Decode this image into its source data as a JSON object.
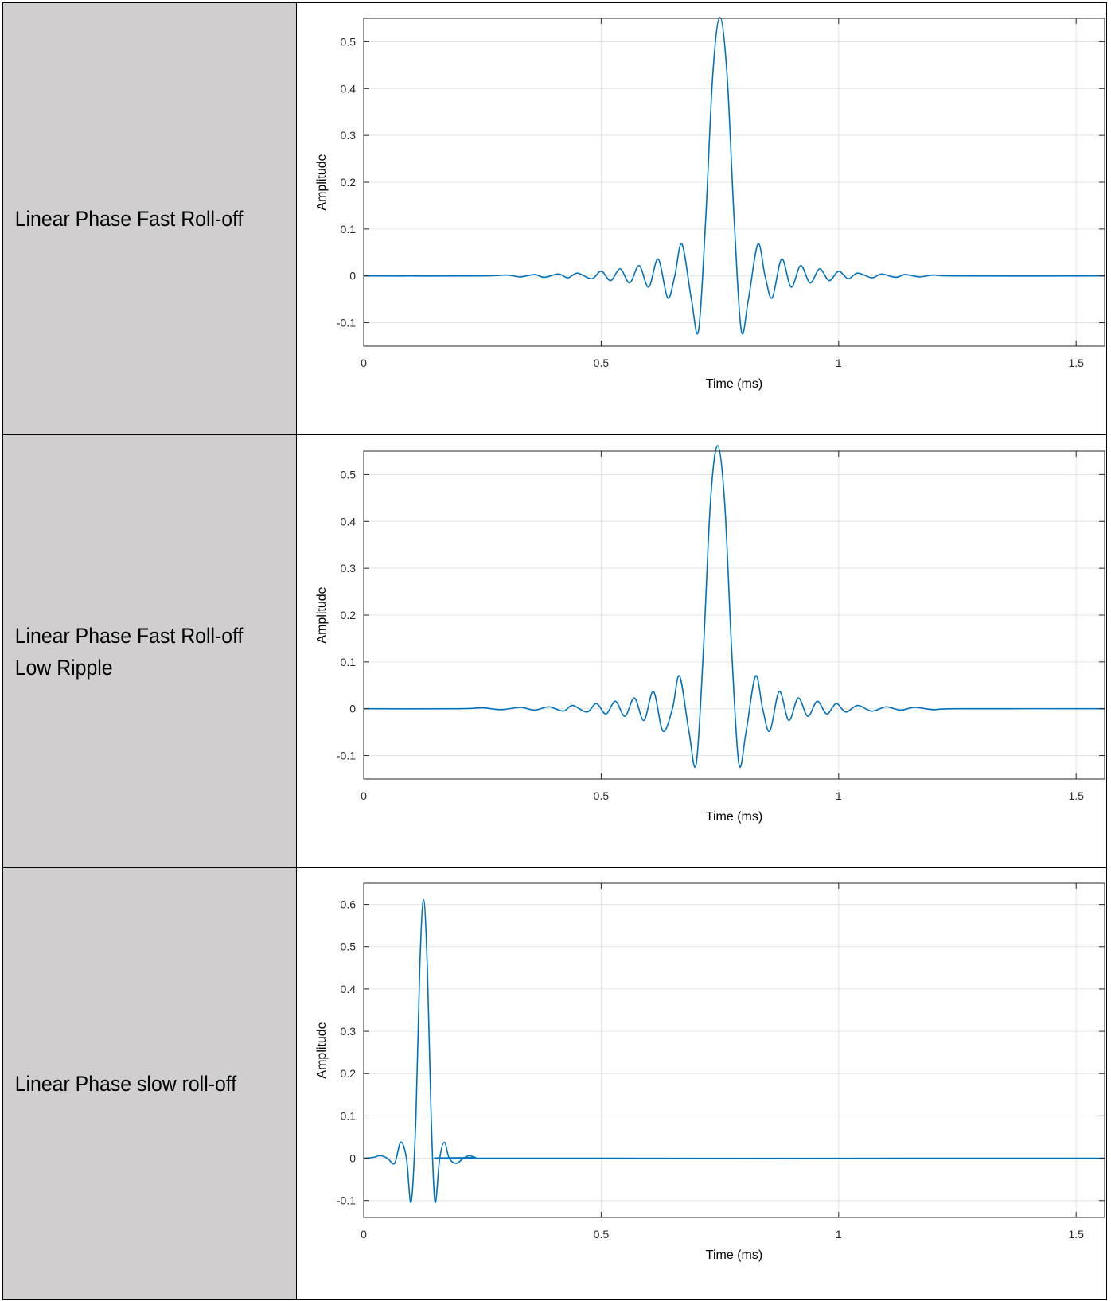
{
  "rows": [
    {
      "label": "Linear Phase Fast Roll-off"
    },
    {
      "label": "Linear Phase Fast Roll-off\nLow Ripple"
    },
    {
      "label": "Linear Phase slow roll-off"
    }
  ],
  "colors": {
    "line": "#0072bd",
    "label_bg": "#d0cecf"
  },
  "chart_data": [
    {
      "type": "line",
      "title": "",
      "xlabel": "Time (ms)",
      "ylabel": "Amplitude",
      "xlim": [
        0,
        1.56
      ],
      "ylim": [
        -0.15,
        0.55
      ],
      "xticks": [
        0,
        0.5,
        1,
        1.5
      ],
      "xtick_labels": [
        "0",
        "0.5",
        "1",
        "1.5"
      ],
      "yticks": [
        -0.1,
        0,
        0.1,
        0.2,
        0.3,
        0.4,
        0.5
      ],
      "ytick_labels": [
        "-0.1",
        "0",
        "0.1",
        "0.2",
        "0.3",
        "0.4",
        "0.5"
      ],
      "grid": true,
      "series": [
        {
          "x": [
            0,
            0.25,
            0.3,
            0.33,
            0.36,
            0.38,
            0.41,
            0.43,
            0.45,
            0.48,
            0.5,
            0.52,
            0.54,
            0.56,
            0.58,
            0.6,
            0.62,
            0.64,
            0.655,
            0.67,
            0.69,
            0.705,
            0.72,
            0.735,
            0.75,
            0.765,
            0.78,
            0.795,
            0.81,
            0.83,
            0.845,
            0.86,
            0.88,
            0.9,
            0.92,
            0.94,
            0.96,
            0.98,
            1.0,
            1.02,
            1.04,
            1.07,
            1.09,
            1.12,
            1.14,
            1.17,
            1.2,
            1.25,
            1.56
          ],
          "y": [
            0,
            0,
            0.002,
            -0.002,
            0.003,
            -0.003,
            0.004,
            -0.004,
            0.006,
            -0.006,
            0.01,
            -0.01,
            0.015,
            -0.015,
            0.022,
            -0.024,
            0.036,
            -0.047,
            0.0,
            0.068,
            -0.05,
            -0.117,
            0.12,
            0.43,
            0.552,
            0.43,
            0.12,
            -0.117,
            -0.05,
            0.068,
            0.0,
            -0.047,
            0.036,
            -0.024,
            0.022,
            -0.015,
            0.015,
            -0.01,
            0.01,
            -0.006,
            0.006,
            -0.004,
            0.004,
            -0.003,
            0.003,
            -0.002,
            0.002,
            0,
            0
          ]
        }
      ]
    },
    {
      "type": "line",
      "title": "",
      "xlabel": "Time (ms)",
      "ylabel": "Amplitude",
      "xlim": [
        0,
        1.56
      ],
      "ylim": [
        -0.15,
        0.55
      ],
      "xticks": [
        0,
        0.5,
        1,
        1.5
      ],
      "xtick_labels": [
        "0",
        "0.5",
        "1",
        "1.5"
      ],
      "yticks": [
        -0.1,
        0,
        0.1,
        0.2,
        0.3,
        0.4,
        0.5
      ],
      "ytick_labels": [
        "-0.1",
        "0",
        "0.1",
        "0.2",
        "0.3",
        "0.4",
        "0.5"
      ],
      "grid": true,
      "series": [
        {
          "x": [
            0,
            0.2,
            0.25,
            0.29,
            0.33,
            0.36,
            0.39,
            0.42,
            0.44,
            0.47,
            0.49,
            0.51,
            0.53,
            0.55,
            0.57,
            0.59,
            0.61,
            0.63,
            0.65,
            0.665,
            0.685,
            0.7,
            0.715,
            0.73,
            0.745,
            0.76,
            0.775,
            0.79,
            0.805,
            0.825,
            0.84,
            0.855,
            0.875,
            0.895,
            0.915,
            0.935,
            0.955,
            0.975,
            0.995,
            1.015,
            1.04,
            1.07,
            1.1,
            1.13,
            1.16,
            1.2,
            1.25,
            1.56
          ],
          "y": [
            0,
            0,
            0.002,
            -0.002,
            0.003,
            -0.003,
            0.004,
            -0.005,
            0.007,
            -0.007,
            0.011,
            -0.011,
            0.016,
            -0.016,
            0.023,
            -0.025,
            0.037,
            -0.048,
            0.0,
            0.07,
            -0.05,
            -0.118,
            0.12,
            0.44,
            0.562,
            0.44,
            0.12,
            -0.118,
            -0.05,
            0.07,
            0.0,
            -0.048,
            0.037,
            -0.025,
            0.023,
            -0.016,
            0.016,
            -0.011,
            0.011,
            -0.007,
            0.007,
            -0.005,
            0.004,
            -0.003,
            0.003,
            -0.002,
            0,
            0
          ]
        }
      ]
    },
    {
      "type": "line",
      "title": "",
      "xlabel": "Time (ms)",
      "ylabel": "Amplitude",
      "xlim": [
        0,
        1.56
      ],
      "ylim": [
        -0.14,
        0.65
      ],
      "xticks": [
        0,
        0.5,
        1,
        1.5
      ],
      "xtick_labels": [
        "0",
        "0.5",
        "1",
        "1.5"
      ],
      "yticks": [
        -0.1,
        0,
        0.1,
        0.2,
        0.3,
        0.4,
        0.5,
        0.6
      ],
      "ytick_labels": [
        "-0.1",
        "0",
        "0.1",
        "0.2",
        "0.3",
        "0.4",
        "0.5",
        "0.6"
      ],
      "grid": true,
      "series": [
        {
          "x": [
            0,
            0.02,
            0.035,
            0.05,
            0.065,
            0.078,
            0.09,
            0.1,
            0.11,
            0.118,
            0.126,
            0.134,
            0.142,
            0.15,
            0.16,
            0.17,
            0.18,
            0.195,
            0.21,
            0.222,
            0.235,
            0.25,
            1.56
          ],
          "y": [
            0,
            0.002,
            0.006,
            0.0,
            -0.012,
            0.038,
            0.0,
            -0.103,
            0.1,
            0.45,
            0.611,
            0.45,
            0.1,
            -0.103,
            0.0,
            0.038,
            0.0,
            -0.012,
            0.0,
            0.006,
            0.002,
            0,
            0
          ]
        }
      ]
    }
  ]
}
